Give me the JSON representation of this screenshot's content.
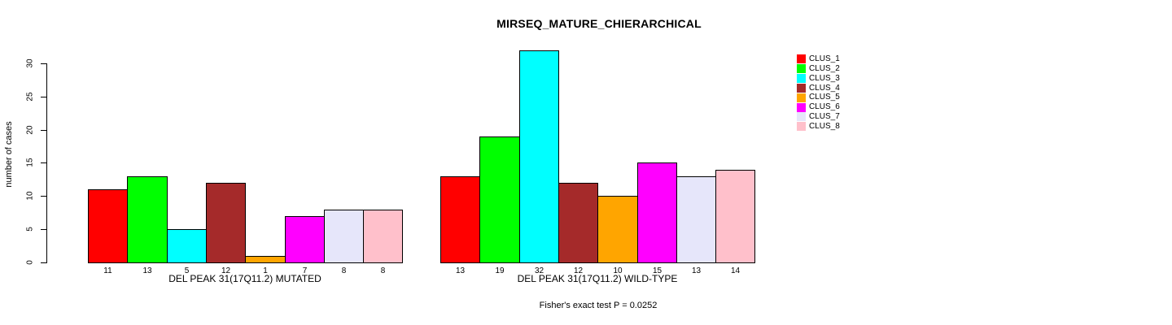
{
  "chart_data": {
    "type": "bar",
    "title": "MIRSEQ_MATURE_CHIERARCHICAL",
    "ylabel": "number of cases",
    "ylim": [
      0,
      30
    ],
    "yticks": [
      0,
      5,
      10,
      15,
      20,
      25,
      30
    ],
    "grid": false,
    "legend_position": "right",
    "clusters": [
      "CLUS_1",
      "CLUS_2",
      "CLUS_3",
      "CLUS_4",
      "CLUS_5",
      "CLUS_6",
      "CLUS_7",
      "CLUS_8"
    ],
    "colors": [
      "#FF0000",
      "#00FF00",
      "#00FFFF",
      "#A52A2A",
      "#FFA500",
      "#FF00FF",
      "#E6E6FA",
      "#FFC0CB"
    ],
    "groups": [
      {
        "label": "DEL PEAK 31(17Q11.2) MUTATED",
        "values": [
          11,
          13,
          5,
          12,
          1,
          7,
          8,
          8
        ]
      },
      {
        "label": "DEL PEAK 31(17Q11.2) WILD-TYPE",
        "values": [
          13,
          19,
          32,
          12,
          10,
          15,
          13,
          14
        ]
      }
    ],
    "annotation": "Fisher's exact test P = 0.0252"
  }
}
